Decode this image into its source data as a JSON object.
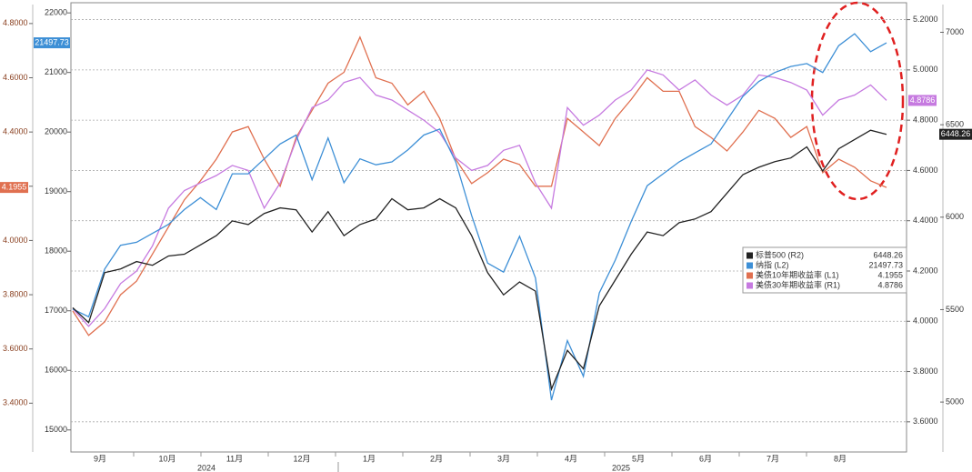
{
  "chart_data": {
    "type": "line",
    "months": [
      "9月",
      "10月",
      "11月",
      "12月",
      "1月",
      "2月",
      "3月",
      "4月",
      "5月",
      "6月",
      "7月",
      "8月"
    ],
    "years": [
      "2024",
      "2025"
    ],
    "axes": {
      "L1": {
        "lim": [
          3.22,
          4.87
        ],
        "ticks": [
          {
            "value": 3.4,
            "label": "3.4000"
          },
          {
            "value": 3.6,
            "label": "3.6000"
          },
          {
            "value": 3.8,
            "label": "3.8000"
          },
          {
            "value": 4.0,
            "label": "4.0000"
          },
          {
            "value": 4.2,
            "label": "4.2000"
          },
          {
            "value": 4.4,
            "label": "4.4000"
          },
          {
            "value": 4.6,
            "label": "4.6000"
          },
          {
            "value": 4.8,
            "label": "4.8000"
          }
        ]
      },
      "L2": {
        "lim": [
          14630,
          22140
        ],
        "ticks": [
          15000,
          16000,
          17000,
          18000,
          19000,
          20000,
          21000,
          22000
        ]
      },
      "R1": {
        "lim": [
          3.48,
          5.26
        ],
        "ticks": [
          {
            "value": 3.6,
            "label": "3.6000"
          },
          {
            "value": 3.8,
            "label": "3.8000"
          },
          {
            "value": 4.0,
            "label": "4.0000"
          },
          {
            "value": 4.2,
            "label": "4.2000"
          },
          {
            "value": 4.4,
            "label": "4.4000"
          },
          {
            "value": 4.6,
            "label": "4.6000"
          },
          {
            "value": 4.8,
            "label": "4.8000"
          },
          {
            "value": 5.0,
            "label": "5.0000"
          },
          {
            "value": 5.2,
            "label": "5.2000"
          }
        ]
      },
      "R2": {
        "lim": [
          4730,
          7150
        ],
        "ticks": [
          5000,
          5500,
          6000,
          6500,
          7000
        ]
      }
    },
    "grid_axis": "R1",
    "series": [
      {
        "name": "标普500 (R2)",
        "axis": "R2",
        "color": "#222222",
        "values": [
          5510,
          5430,
          5700,
          5720,
          5760,
          5740,
          5790,
          5800,
          5850,
          5900,
          5980,
          5960,
          6020,
          6050,
          6040,
          5920,
          6030,
          5900,
          5960,
          5990,
          6100,
          6040,
          6050,
          6100,
          6050,
          5900,
          5700,
          5580,
          5650,
          5600,
          5070,
          5280,
          5180,
          5520,
          5660,
          5800,
          5920,
          5900,
          5970,
          5990,
          6030,
          6130,
          6230,
          6270,
          6300,
          6320,
          6380,
          6250,
          6370,
          6420,
          6470,
          6448.26
        ]
      },
      {
        "name": "纳指 (L2)",
        "axis": "L2",
        "color": "#3d8fd6",
        "values": [
          17030,
          16900,
          17700,
          18100,
          18150,
          18300,
          18450,
          18700,
          18900,
          18700,
          19300,
          19300,
          19550,
          19800,
          19950,
          19200,
          19900,
          19150,
          19550,
          19450,
          19500,
          19700,
          19950,
          20050,
          19500,
          18600,
          17800,
          17650,
          18250,
          17550,
          15500,
          16500,
          15900,
          17300,
          17850,
          18500,
          19100,
          19300,
          19500,
          19650,
          19800,
          20200,
          20600,
          20850,
          21000,
          21100,
          21150,
          21000,
          21450,
          21650,
          21350,
          21497.73
        ]
      },
      {
        "name": "美债10年期收益率 (L1)",
        "axis": "L1",
        "color": "#e07050",
        "values": [
          3.74,
          3.65,
          3.7,
          3.8,
          3.85,
          3.95,
          4.05,
          4.15,
          4.22,
          4.3,
          4.4,
          4.42,
          4.3,
          4.2,
          4.38,
          4.48,
          4.58,
          4.62,
          4.75,
          4.6,
          4.58,
          4.5,
          4.55,
          4.45,
          4.3,
          4.21,
          4.25,
          4.3,
          4.28,
          4.2,
          4.2,
          4.45,
          4.4,
          4.35,
          4.45,
          4.52,
          4.6,
          4.55,
          4.55,
          4.42,
          4.38,
          4.33,
          4.4,
          4.48,
          4.45,
          4.38,
          4.42,
          4.25,
          4.3,
          4.27,
          4.22,
          4.1955
        ]
      },
      {
        "name": "美债30年期收益率 (R1)",
        "axis": "R1",
        "color": "#c67ae0",
        "values": [
          4.05,
          3.98,
          4.05,
          4.15,
          4.2,
          4.3,
          4.45,
          4.52,
          4.55,
          4.58,
          4.62,
          4.6,
          4.45,
          4.55,
          4.72,
          4.85,
          4.88,
          4.95,
          4.97,
          4.9,
          4.88,
          4.84,
          4.8,
          4.75,
          4.65,
          4.6,
          4.62,
          4.68,
          4.7,
          4.55,
          4.45,
          4.85,
          4.78,
          4.82,
          4.88,
          4.92,
          5.0,
          4.98,
          4.92,
          4.96,
          4.9,
          4.86,
          4.9,
          4.98,
          4.97,
          4.95,
          4.92,
          4.82,
          4.88,
          4.9,
          4.94,
          4.8786
        ]
      }
    ]
  }
}
